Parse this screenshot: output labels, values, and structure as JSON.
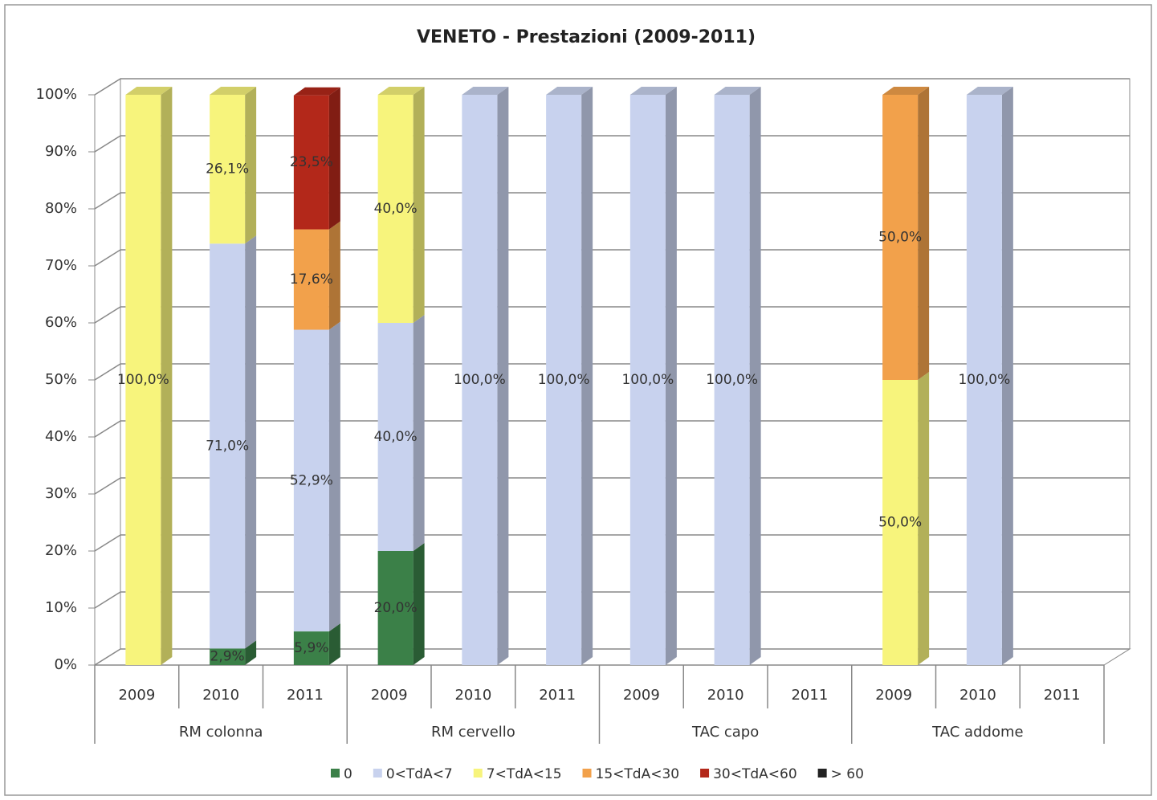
{
  "chart_data": {
    "type": "bar",
    "stacked": true,
    "title": "VENETO - Prestazioni (2009-2011)",
    "categories": [
      "2009",
      "2010",
      "2011",
      "2009",
      "2010",
      "2011",
      "2009",
      "2010",
      "2011",
      "2009",
      "2010",
      "2011"
    ],
    "groups": [
      "RM colonna",
      "RM cervello",
      "TAC capo",
      "TAC addome"
    ],
    "series": [
      {
        "name": "0",
        "color": "#3b8048",
        "values": [
          null,
          2.9,
          5.9,
          20,
          null,
          null,
          null,
          null,
          null,
          null,
          null,
          null
        ],
        "value_labels": [
          null,
          "2,9%",
          "5,9%",
          "20,0%",
          null,
          null,
          null,
          null,
          null,
          null,
          null,
          null
        ]
      },
      {
        "name": "0<TdA<7",
        "color": "#c8d2ee",
        "values": [
          null,
          71,
          52.9,
          40,
          100,
          100,
          100,
          100,
          null,
          null,
          100,
          null
        ],
        "value_labels": [
          null,
          "71,0%",
          "52,9%",
          "40,0%",
          "100,0%",
          "100,0%",
          "100,0%",
          "100,0%",
          null,
          null,
          "100,0%",
          null
        ]
      },
      {
        "name": "7<TdA<15",
        "color": "#f7f47c",
        "values": [
          100,
          26.1,
          null,
          40,
          null,
          null,
          null,
          null,
          null,
          50,
          null,
          null
        ],
        "value_labels": [
          "100,0%",
          "26,1%",
          null,
          "40,0%",
          null,
          null,
          null,
          null,
          null,
          "50,0%",
          null,
          null
        ]
      },
      {
        "name": "15<TdA<30",
        "color": "#f2a14b",
        "values": [
          null,
          null,
          17.6,
          null,
          null,
          null,
          null,
          null,
          null,
          50,
          null,
          null
        ],
        "value_labels": [
          null,
          null,
          "17,6%",
          null,
          null,
          null,
          null,
          null,
          null,
          "50,0%",
          null,
          null
        ]
      },
      {
        "name": "30<TdA<60",
        "color": "#b3281a",
        "values": [
          null,
          null,
          23.5,
          null,
          null,
          null,
          null,
          null,
          null,
          null,
          null,
          null
        ],
        "value_labels": [
          null,
          null,
          "23,5%",
          null,
          null,
          null,
          null,
          null,
          null,
          null,
          null,
          null
        ]
      },
      {
        "name": "> 60",
        "color": "#222222",
        "values": [
          null,
          null,
          null,
          null,
          null,
          null,
          null,
          null,
          null,
          null,
          null,
          null
        ]
      }
    ],
    "ylim": [
      0,
      100
    ],
    "yticks": [
      {
        "value": 0,
        "label": "0%"
      },
      {
        "value": 10,
        "label": "10%"
      },
      {
        "value": 20,
        "label": "20%"
      },
      {
        "value": 30,
        "label": "30%"
      },
      {
        "value": 40,
        "label": "40%"
      },
      {
        "value": 50,
        "label": "50%"
      },
      {
        "value": 60,
        "label": "60%"
      },
      {
        "value": 70,
        "label": "70%"
      },
      {
        "value": 80,
        "label": "80%"
      },
      {
        "value": 90,
        "label": "90%"
      },
      {
        "value": 100,
        "label": "100%"
      }
    ],
    "grid": true,
    "legend": "bottom"
  }
}
